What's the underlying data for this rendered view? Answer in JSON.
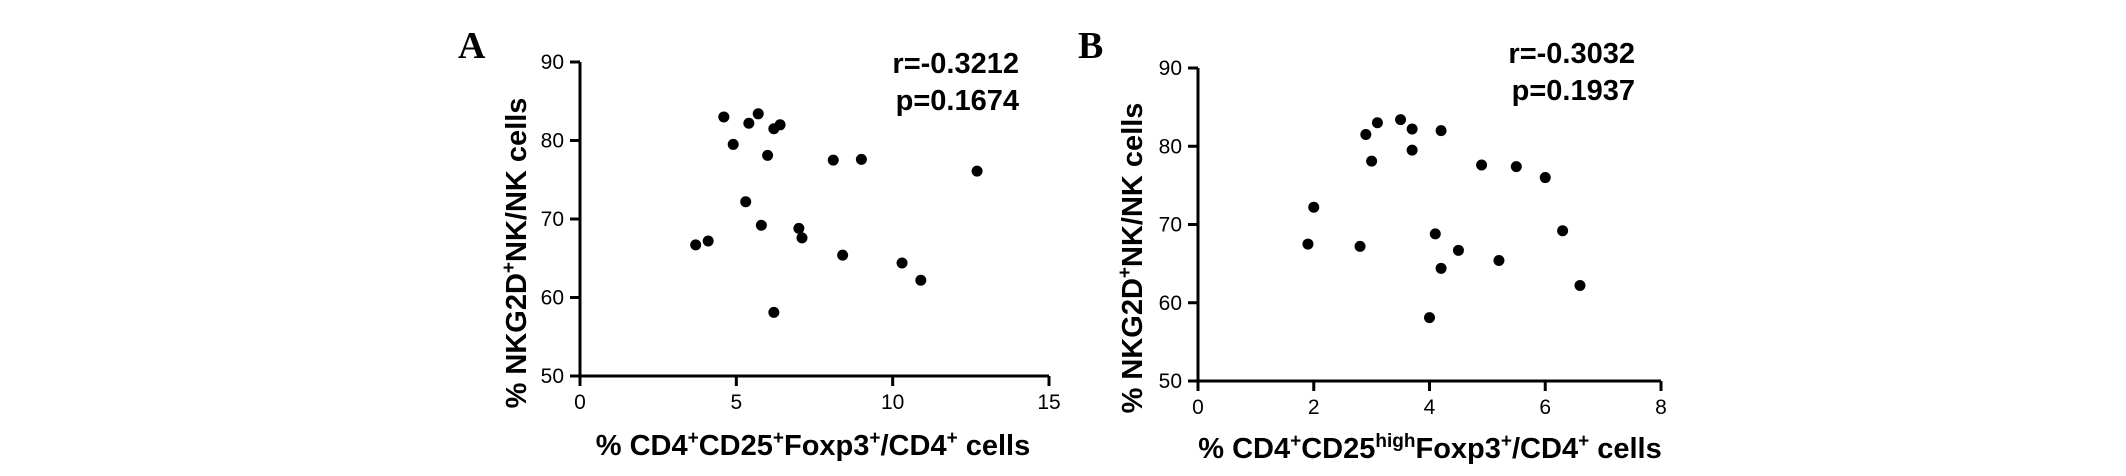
{
  "figure": {
    "panels": [
      {
        "letter": "A",
        "stat_r": "r=-0.3212",
        "stat_p": "p=0.1674",
        "ylabel": {
          "pre": "% NKG2D",
          "sup1": "+",
          "post": "NK/NK cells"
        },
        "xlabel": {
          "t1": "% CD4",
          "s1": "+",
          "t2": "CD25",
          "s2": "+",
          "t3": "Foxp3",
          "s3": "+",
          "t4": "/CD4",
          "s4": "+",
          "t5": " cells"
        }
      },
      {
        "letter": "B",
        "stat_r": "r=-0.3032",
        "stat_p": "p=0.1937",
        "ylabel": {
          "pre": "% NKG2D",
          "sup1": "+",
          "post": "NK/NK cells"
        },
        "xlabel": {
          "t1": "% CD4",
          "s1": "+",
          "t2": "CD25",
          "s2": "high",
          "t3": "Foxp3",
          "s3": "+",
          "t4": "/CD4",
          "s4": "+",
          "t5": " cells"
        }
      }
    ]
  },
  "chart_data": [
    {
      "type": "scatter",
      "xlim": [
        0,
        15
      ],
      "ylim": [
        50,
        90
      ],
      "xticks": [
        0,
        5,
        10,
        15
      ],
      "yticks": [
        50,
        60,
        70,
        80,
        90
      ],
      "grid": false,
      "x": [
        3.7,
        4.1,
        4.6,
        4.9,
        5.3,
        5.4,
        5.7,
        5.8,
        6.0,
        6.2,
        6.2,
        6.4,
        7.0,
        7.1,
        8.1,
        8.4,
        9.0,
        10.3,
        10.9,
        12.7
      ],
      "y": [
        66.7,
        67.2,
        83.0,
        79.5,
        72.2,
        82.2,
        83.4,
        69.2,
        78.1,
        81.5,
        58.1,
        82.0,
        68.8,
        67.6,
        77.5,
        65.4,
        77.6,
        64.4,
        62.2,
        76.1
      ]
    },
    {
      "type": "scatter",
      "xlim": [
        0,
        8
      ],
      "ylim": [
        50,
        90
      ],
      "xticks": [
        0,
        2,
        4,
        6,
        8
      ],
      "yticks": [
        50,
        60,
        70,
        80,
        90
      ],
      "grid": false,
      "x": [
        1.9,
        2.0,
        2.8,
        2.9,
        3.0,
        3.1,
        3.5,
        3.7,
        3.7,
        4.0,
        4.1,
        4.2,
        4.2,
        4.5,
        4.9,
        5.2,
        5.5,
        6.0,
        6.3,
        6.6
      ],
      "y": [
        67.5,
        72.2,
        67.2,
        81.5,
        78.1,
        83.0,
        83.4,
        82.2,
        79.5,
        58.1,
        68.8,
        82.0,
        64.4,
        66.7,
        77.6,
        65.4,
        77.4,
        76.0,
        69.2,
        62.2
      ]
    }
  ]
}
